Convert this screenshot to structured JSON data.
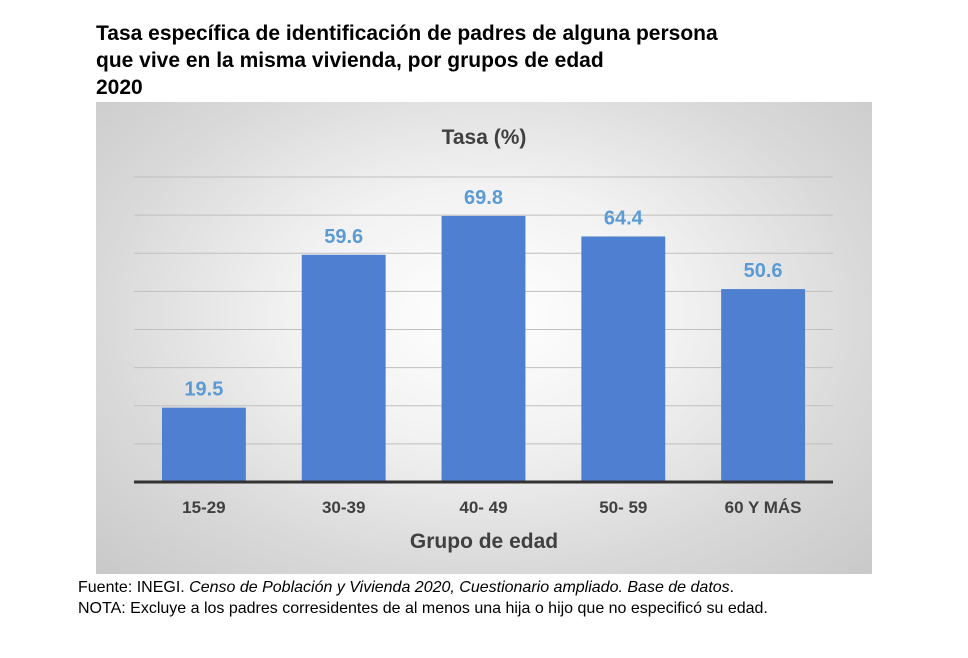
{
  "header": {
    "title_lines": [
      "Tasa específica de identificación de padres de alguna persona",
      "que vive en la misma vivienda, por grupos de edad",
      "2020"
    ]
  },
  "chart_data": {
    "type": "bar",
    "title": "Tasa (%)",
    "xlabel": "Grupo de edad",
    "ylabel": "",
    "categories": [
      "15-29",
      "30-39",
      "40- 49",
      "50- 59",
      "60 Y MÁS"
    ],
    "values": [
      19.5,
      59.6,
      69.8,
      64.4,
      50.6
    ],
    "ylim": [
      0,
      80
    ],
    "grid": true,
    "bar_color": "#4f7fd0",
    "label_color": "#5b9bd5"
  },
  "footer": {
    "source_prefix": "Fuente: INEGI. ",
    "source_italic": "Censo de Población y Vivienda 2020, Cuestionario ampliado. Base de datos",
    "source_suffix": ".",
    "note": "NOTA: Excluye a los padres corresidentes de al menos una hija o hijo que no especificó su edad."
  }
}
